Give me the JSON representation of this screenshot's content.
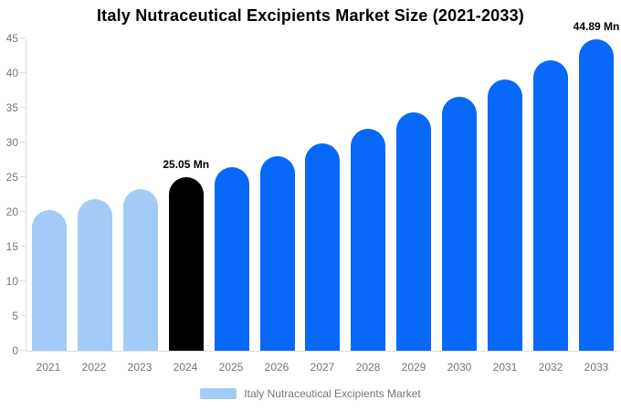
{
  "chart_data": {
    "type": "bar",
    "title": "Italy Nutraceutical Excipients Market Size (2021-2033)",
    "categories": [
      "2021",
      "2022",
      "2023",
      "2024",
      "2025",
      "2026",
      "2027",
      "2028",
      "2029",
      "2030",
      "2031",
      "2032",
      "2033"
    ],
    "values": [
      20.2,
      21.9,
      23.3,
      25.05,
      26.4,
      28.0,
      29.9,
      32.0,
      34.3,
      36.6,
      39.1,
      41.8,
      44.89
    ],
    "value_labels": [
      "",
      "",
      "",
      "25.05 Mn",
      "",
      "",
      "",
      "",
      "",
      "",
      "",
      "",
      "44.89 Mn"
    ],
    "unit": "Mn",
    "xlabel": "",
    "ylabel": "",
    "ylim": [
      0,
      45
    ],
    "yticks": [
      0,
      5,
      10,
      15,
      20,
      25,
      30,
      35,
      40,
      45
    ],
    "grid": false,
    "legend_position": "bottom",
    "legend": [
      {
        "label": "Italy Nutraceutical Excipients Market",
        "color": "#a2cbf7"
      }
    ],
    "bar_colors": [
      "#a2cbf7",
      "#a2cbf7",
      "#a2cbf7",
      "#000000",
      "#0768fa",
      "#0768fa",
      "#0768fa",
      "#0768fa",
      "#0768fa",
      "#0768fa",
      "#0768fa",
      "#0768fa",
      "#0768fa"
    ],
    "colors": {
      "historical_bar": "#a2cbf7",
      "base_year_bar": "#000000",
      "forecast_bar": "#0768fa",
      "axis_line": "#dedede",
      "tick_text": "#757575",
      "annotation_text": "#000000",
      "background": "#ffffff"
    }
  }
}
